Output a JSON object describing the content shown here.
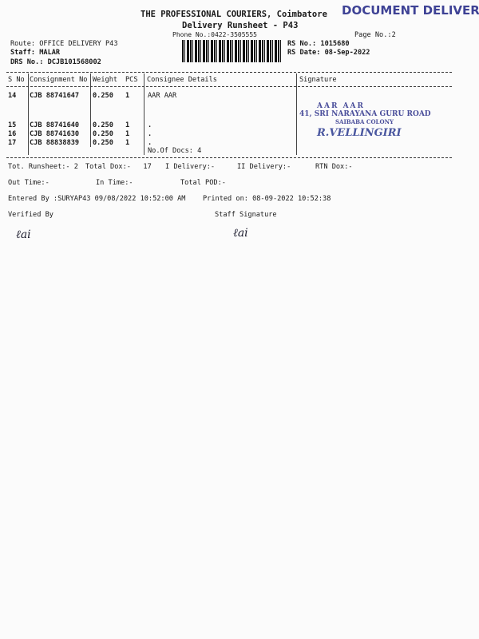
{
  "header": {
    "company": "THE PROFESSIONAL COURIERS, Coimbatore",
    "title": "Delivery Runsheet - P43",
    "phone": "Phone No.:0422-3505555",
    "page": "Page No.:2",
    "route": "Route: OFFICE DELIVERY P43",
    "staff": "Staff: MALAR",
    "drs": "DRS No.: DCJB101568002",
    "rs_no": "RS No.: 1015680",
    "rs_date": "RS Date: 08-Sep-2022"
  },
  "stamp": {
    "text": "DOCUMENT DELIVERY",
    "color": "#2a2f8a"
  },
  "consignee_stamp": {
    "line1": "AAR AAR",
    "line2": "41, SRI NARAYANA GURU ROAD",
    "line3": "SAIBABA COLONY",
    "handwriting": "R.VELLINGIRI"
  },
  "table": {
    "headers": [
      "S No",
      "Consignment No",
      "Weight",
      "PCS",
      "Consignee Details",
      "Signature"
    ],
    "rows": [
      {
        "sno": "14",
        "cn": "CJB 88741647",
        "weight": "0.250",
        "pcs": "1",
        "details": "AAR AAR"
      },
      {
        "sno": "15",
        "cn": "CJB 88741640",
        "weight": "0.250",
        "pcs": "1",
        "details": "."
      },
      {
        "sno": "16",
        "cn": "CJB 88741630",
        "weight": "0.250",
        "pcs": "1",
        "details": "."
      },
      {
        "sno": "17",
        "cn": "CJB 88838839",
        "weight": "0.250",
        "pcs": "1",
        "details": "."
      }
    ],
    "docs": "No.Of Docs: 4"
  },
  "footer": {
    "tot_runsheet": "Tot. Runsheet:- 2",
    "total_dox": "Total Dox:-   17",
    "i_delivery": "I Delivery:-",
    "ii_delivery": "II Delivery:-",
    "rtn_dox": "RTN Dox:-",
    "out_time": "Out Time:-",
    "in_time": "In Time:-",
    "total_pod": "Total POD:-",
    "entered_by": "Entered By :SURYAP43 09/08/2022 10:52:00 AM",
    "printed_on": "Printed on: 08-09-2022 10:52:38",
    "verified_by": "Verified By",
    "staff_signature": "Staff Signature"
  }
}
